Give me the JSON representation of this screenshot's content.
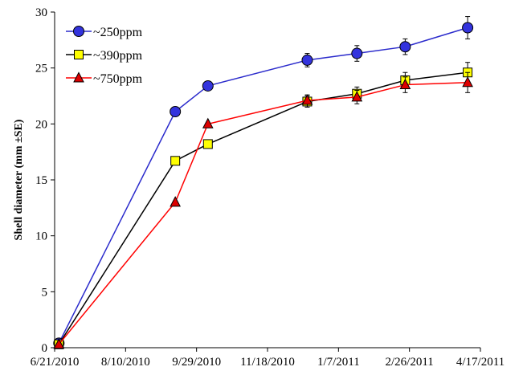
{
  "chart_data": {
    "type": "line",
    "title": "",
    "xlabel": "",
    "ylabel": "Shell diameter (mm ±SE)",
    "x_ticks": [
      "6/21/2010",
      "8/10/2010",
      "9/29/2010",
      "11/18/2010",
      "1/7/2011",
      "2/26/2011",
      "4/17/2011"
    ],
    "xlim": [
      "2010-06-21",
      "2011-04-17"
    ],
    "y_ticks": [
      "0",
      "5",
      "10",
      "15",
      "20",
      "25",
      "30"
    ],
    "ylim": [
      0,
      30
    ],
    "grid": false,
    "legend_position": "top-left",
    "series": [
      {
        "name": "~250ppm",
        "color": "#2b2bcc",
        "marker": "circle",
        "marker_fill": "#3333dd",
        "x": [
          "2010-06-24",
          "2010-09-14",
          "2010-10-07",
          "2010-12-16",
          "2011-01-20",
          "2011-02-23",
          "2011-04-08"
        ],
        "values": [
          0.4,
          21.1,
          23.4,
          25.7,
          26.3,
          26.9,
          28.6
        ],
        "errors": [
          0,
          0,
          0,
          0.6,
          0.7,
          0.7,
          1.0
        ]
      },
      {
        "name": "~390ppm",
        "color": "#000000",
        "marker": "square",
        "marker_fill": "#ffff00",
        "x": [
          "2010-06-24",
          "2010-09-14",
          "2010-10-07",
          "2010-12-16",
          "2011-01-20",
          "2011-02-23",
          "2011-04-08"
        ],
        "values": [
          0.3,
          16.7,
          18.2,
          22.0,
          22.7,
          23.9,
          24.6
        ],
        "errors": [
          0,
          0,
          0,
          0.5,
          0.6,
          0.7,
          0.9
        ]
      },
      {
        "name": "~750ppm",
        "color": "#ff0000",
        "marker": "triangle",
        "marker_fill": "#dd0000",
        "x": [
          "2010-06-24",
          "2010-09-14",
          "2010-10-07",
          "2010-12-16",
          "2011-01-20",
          "2011-02-23",
          "2011-04-08"
        ],
        "values": [
          0.3,
          13.0,
          20.0,
          22.1,
          22.4,
          23.5,
          23.7
        ],
        "errors": [
          0,
          0,
          0,
          0.5,
          0.6,
          0.7,
          0.9
        ]
      }
    ]
  }
}
